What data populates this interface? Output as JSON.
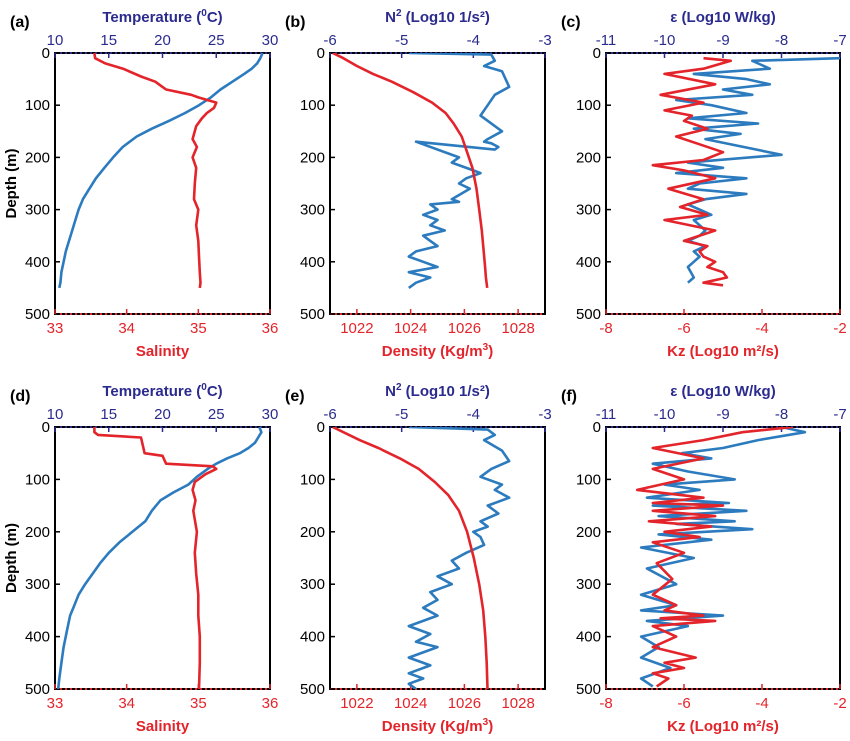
{
  "colors": {
    "top_axis": "#2b2b8f",
    "bottom_axis": "#e3242b",
    "blue_line": "#2c7bbf",
    "red_line": "#e3242b"
  },
  "depth_axis": {
    "label": "Depth (m)",
    "ticks": [
      "0",
      "100",
      "200",
      "300",
      "400",
      "500"
    ],
    "ylim": [
      0,
      500
    ]
  },
  "chart_data": [
    {
      "panel": "(a)",
      "type": "line",
      "top_axis": {
        "label": "Temperature (°C)",
        "label_main": "Temperature (",
        "label_sup": "0",
        "label_tail": "C)",
        "ticks": [
          "10",
          "15",
          "20",
          "25",
          "30"
        ],
        "xlim": [
          10,
          30
        ]
      },
      "bottom_axis": {
        "label": "Salinity",
        "label_main": "Salinity",
        "label_sup": "",
        "label_tail": "",
        "ticks": [
          "33",
          "34",
          "35",
          "36"
        ],
        "xlim": [
          33,
          36
        ]
      },
      "series": [
        {
          "axis": "top",
          "color": "blue",
          "x": [
            29.3,
            29.1,
            28.8,
            28.3,
            27.6,
            26.5,
            25.4,
            24.5,
            23.4,
            22.1,
            20.6,
            19.0,
            17.6,
            16.3,
            15.4,
            14.6,
            13.8,
            13.2,
            12.6,
            12.2,
            11.9,
            11.6,
            11.3,
            11.0,
            10.8,
            10.6,
            10.5,
            10.4
          ],
          "y": [
            0,
            10,
            20,
            30,
            40,
            55,
            70,
            85,
            100,
            115,
            130,
            145,
            160,
            180,
            200,
            220,
            240,
            260,
            280,
            300,
            320,
            340,
            360,
            380,
            400,
            420,
            440,
            450
          ]
        },
        {
          "axis": "bottom",
          "color": "red",
          "x": [
            33.55,
            33.56,
            33.7,
            33.95,
            34.2,
            34.4,
            34.5,
            34.55,
            34.9,
            35.0,
            35.25,
            35.22,
            35.12,
            35.05,
            34.97,
            34.92,
            34.98,
            34.92,
            34.97,
            34.95,
            34.94,
            35.0,
            34.97,
            35.0,
            35.01,
            35.02,
            35.03,
            35.02
          ],
          "y": [
            0,
            10,
            20,
            30,
            45,
            55,
            65,
            70,
            80,
            85,
            95,
            105,
            115,
            125,
            140,
            165,
            180,
            200,
            220,
            250,
            280,
            300,
            330,
            360,
            390,
            420,
            440,
            450
          ]
        }
      ]
    },
    {
      "panel": "(b)",
      "type": "line",
      "top_axis": {
        "label": "N² (Log10 1/s²)",
        "label_main": "N",
        "label_sup": "2",
        "label_tail": " (Log10 1/s²)",
        "ticks": [
          "-6",
          "-5",
          "-4",
          "-3"
        ],
        "xlim": [
          -6,
          -3
        ]
      },
      "bottom_axis": {
        "label": "Density (Kg/m³)",
        "label_main": "Density (Kg/m",
        "label_sup": "3",
        "label_tail": ")",
        "ticks": [
          "1022",
          "1024",
          "1026",
          "1028"
        ],
        "xlim": [
          1021,
          1029
        ]
      },
      "series": [
        {
          "axis": "top",
          "color": "blue",
          "x": [
            -4.9,
            -3.75,
            -3.7,
            -3.85,
            -3.6,
            -3.5,
            -3.7,
            -3.8,
            -3.9,
            -3.7,
            -3.6,
            -3.8,
            -3.85,
            -3.75,
            -3.65,
            -3.7,
            -4.8,
            -4.2,
            -4.3,
            -4.0,
            -3.9,
            -4.1,
            -4.2,
            -4.05,
            -4.3,
            -4.2,
            -4.6,
            -4.5,
            -4.7,
            -4.5,
            -4.6,
            -4.4,
            -4.7,
            -4.6,
            -4.5,
            -4.8,
            -4.9,
            -4.7,
            -4.5,
            -4.9,
            -4.6,
            -4.8,
            -4.9
          ],
          "y": [
            0,
            3,
            15,
            25,
            35,
            65,
            80,
            100,
            120,
            140,
            150,
            165,
            170,
            173,
            180,
            185,
            170,
            200,
            210,
            225,
            230,
            240,
            250,
            260,
            280,
            285,
            290,
            300,
            310,
            320,
            330,
            340,
            350,
            360,
            370,
            380,
            390,
            400,
            410,
            420,
            430,
            440,
            450
          ]
        },
        {
          "axis": "bottom",
          "color": "red",
          "x": [
            1021.1,
            1021.5,
            1022.0,
            1022.6,
            1023.3,
            1024.1,
            1024.8,
            1025.3,
            1025.6,
            1025.9,
            1026.1,
            1026.3,
            1026.45,
            1026.55,
            1026.65,
            1026.72,
            1026.77,
            1026.8,
            1026.85
          ],
          "y": [
            0,
            10,
            25,
            40,
            55,
            75,
            95,
            115,
            135,
            160,
            190,
            220,
            260,
            300,
            340,
            380,
            410,
            430,
            450
          ]
        }
      ]
    },
    {
      "panel": "(c)",
      "type": "line",
      "top_axis": {
        "label": "ε (Log10 W/kg)",
        "label_main": "ε (Log10 W/kg)",
        "label_sup": "",
        "label_tail": "",
        "ticks": [
          "-11",
          "-10",
          "-9",
          "-8",
          "-7"
        ],
        "xlim": [
          -11,
          -7
        ]
      },
      "bottom_axis": {
        "label": "Kz (Log10 m²/s)",
        "label_main": "Kz (Log10 m²/s)",
        "label_sup": "",
        "label_tail": "",
        "ticks": [
          "-8",
          "-6",
          "-4",
          "-2"
        ],
        "xlim": [
          -8,
          -2
        ]
      },
      "series": [
        {
          "axis": "top",
          "color": "blue",
          "x": [
            -7.0,
            -8.5,
            -8.2,
            -9.5,
            -8.6,
            -8.2,
            -9.0,
            -8.5,
            -9.8,
            -9.2,
            -8.6,
            -9.6,
            -8.4,
            -9.5,
            -8.7,
            -9.3,
            -8.0,
            -9.6,
            -9.0,
            -9.8,
            -8.6,
            -9.4,
            -9.6,
            -8.6,
            -9.3,
            -9.6,
            -9.4,
            -9.2,
            -9.5,
            -9.3,
            -9.4,
            -9.6,
            -9.3,
            -9.5,
            -9.4,
            -9.5,
            -9.6,
            -9.5,
            -9.6
          ],
          "y": [
            10,
            15,
            30,
            40,
            50,
            60,
            70,
            80,
            90,
            100,
            115,
            125,
            135,
            145,
            155,
            165,
            195,
            210,
            220,
            230,
            240,
            250,
            260,
            270,
            280,
            290,
            300,
            310,
            320,
            340,
            350,
            360,
            370,
            380,
            390,
            400,
            410,
            430,
            440
          ]
        },
        {
          "axis": "bottom",
          "color": "red",
          "x": [
            -5.5,
            -4.8,
            -5.5,
            -6.5,
            -5.2,
            -6.6,
            -5.5,
            -6.5,
            -5.8,
            -6.0,
            -5.4,
            -6.2,
            -5.6,
            -5.0,
            -5.5,
            -6.8,
            -6.0,
            -5.2,
            -6.4,
            -5.5,
            -6.1,
            -5.4,
            -6.5,
            -5.2,
            -6.0,
            -5.4,
            -5.6,
            -5.5,
            -5.2,
            -5.4,
            -5.0,
            -4.9,
            -5.5,
            -5.0
          ],
          "y": [
            10,
            15,
            30,
            40,
            60,
            80,
            95,
            110,
            120,
            130,
            145,
            160,
            175,
            190,
            205,
            215,
            225,
            240,
            260,
            280,
            295,
            310,
            320,
            340,
            360,
            370,
            380,
            390,
            400,
            410,
            420,
            430,
            440,
            445
          ]
        }
      ]
    },
    {
      "panel": "(d)",
      "type": "line",
      "top_axis": {
        "label": "Temperature (°C)",
        "label_main": "Temperature (",
        "label_sup": "0",
        "label_tail": "C)",
        "ticks": [
          "10",
          "15",
          "20",
          "25",
          "30"
        ],
        "xlim": [
          10,
          30
        ]
      },
      "bottom_axis": {
        "label": "Salinity",
        "label_main": "Salinity",
        "label_sup": "",
        "label_tail": "",
        "ticks": [
          "33",
          "34",
          "35",
          "36"
        ],
        "xlim": [
          33,
          36
        ]
      },
      "series": [
        {
          "axis": "top",
          "color": "blue",
          "x": [
            29.0,
            29.2,
            28.9,
            28.6,
            28.0,
            27.2,
            26.0,
            25.0,
            24.2,
            23.2,
            22.4,
            21.0,
            19.8,
            19.0,
            18.4,
            17.2,
            16.0,
            15.0,
            14.2,
            13.5,
            12.8,
            12.2,
            11.8,
            11.4,
            11.1,
            10.8,
            10.6,
            10.4,
            10.3
          ],
          "y": [
            0,
            10,
            20,
            30,
            40,
            50,
            60,
            70,
            80,
            95,
            110,
            125,
            140,
            160,
            180,
            200,
            220,
            240,
            260,
            280,
            300,
            320,
            340,
            360,
            390,
            420,
            450,
            480,
            500
          ]
        },
        {
          "axis": "bottom",
          "color": "red",
          "x": [
            33.55,
            33.55,
            33.6,
            34.2,
            34.25,
            34.5,
            34.55,
            35.2,
            35.25,
            35.1,
            34.95,
            34.92,
            34.96,
            34.93,
            34.98,
            34.95,
            34.97,
            35.0,
            35.0,
            35.02,
            35.02,
            35.01
          ],
          "y": [
            0,
            10,
            15,
            20,
            50,
            55,
            70,
            75,
            80,
            90,
            105,
            120,
            140,
            160,
            200,
            240,
            280,
            320,
            360,
            400,
            450,
            500
          ]
        }
      ]
    },
    {
      "panel": "(e)",
      "type": "line",
      "top_axis": {
        "label": "N² (Log10 1/s²)",
        "label_main": "N",
        "label_sup": "2",
        "label_tail": " (Log10 1/s²)",
        "ticks": [
          "-6",
          "-5",
          "-4",
          "-3"
        ],
        "xlim": [
          -6,
          -3
        ]
      },
      "bottom_axis": {
        "label": "Density (Kg/m³)",
        "label_main": "Density (Kg/m",
        "label_sup": "3",
        "label_tail": ")",
        "ticks": [
          "1022",
          "1024",
          "1026",
          "1028"
        ],
        "xlim": [
          1021,
          1029
        ]
      },
      "series": [
        {
          "axis": "top",
          "color": "blue",
          "x": [
            -4.9,
            -3.8,
            -3.7,
            -3.85,
            -3.6,
            -3.5,
            -3.75,
            -3.9,
            -3.6,
            -3.7,
            -3.5,
            -3.8,
            -3.65,
            -3.9,
            -3.8,
            -4.0,
            -3.9,
            -3.85,
            -4.1,
            -4.3,
            -4.2,
            -4.5,
            -4.3,
            -4.6,
            -4.5,
            -4.7,
            -4.5,
            -4.9,
            -4.6,
            -4.8,
            -4.5,
            -4.9,
            -4.6,
            -4.9,
            -4.7,
            -4.9,
            -4.8
          ],
          "y": [
            0,
            5,
            15,
            25,
            45,
            65,
            80,
            95,
            110,
            120,
            135,
            150,
            165,
            180,
            190,
            200,
            210,
            225,
            240,
            255,
            270,
            285,
            300,
            315,
            330,
            345,
            360,
            380,
            395,
            410,
            420,
            440,
            455,
            470,
            480,
            490,
            500
          ]
        },
        {
          "axis": "bottom",
          "color": "red",
          "x": [
            1021.1,
            1021.5,
            1022.1,
            1022.8,
            1023.6,
            1024.3,
            1024.9,
            1025.4,
            1025.8,
            1026.1,
            1026.35,
            1026.55,
            1026.7,
            1026.78,
            1026.83,
            1026.86
          ],
          "y": [
            0,
            10,
            25,
            40,
            60,
            80,
            105,
            130,
            160,
            200,
            250,
            300,
            350,
            400,
            450,
            500
          ]
        }
      ]
    },
    {
      "panel": "(f)",
      "type": "line",
      "top_axis": {
        "label": "ε (Log10 W/kg)",
        "label_main": "ε (Log10 W/kg)",
        "label_sup": "",
        "label_tail": "",
        "ticks": [
          "-11",
          "-10",
          "-9",
          "-8",
          "-7"
        ],
        "xlim": [
          -11,
          -7
        ]
      },
      "bottom_axis": {
        "label": "Kz (Log10 m²/s)",
        "label_main": "Kz (Log10 m²/s)",
        "label_sup": "",
        "label_tail": "",
        "ticks": [
          "-8",
          "-6",
          "-4",
          "-2"
        ],
        "xlim": [
          -8,
          -2
        ]
      },
      "series": [
        {
          "axis": "top",
          "color": "blue",
          "x": [
            -8.0,
            -7.6,
            -8.4,
            -9.0,
            -9.7,
            -9.2,
            -10.2,
            -9.6,
            -8.8,
            -10.0,
            -9.4,
            -10.3,
            -8.9,
            -10.2,
            -8.6,
            -10.1,
            -8.8,
            -9.8,
            -8.5,
            -10.1,
            -9.2,
            -10.4,
            -9.5,
            -10.3,
            -9.8,
            -10.4,
            -9.8,
            -10.4,
            -9.7,
            -9.0,
            -10.3,
            -9.6,
            -10.4,
            -10.1,
            -10.4,
            -9.9,
            -10.4,
            -10.2
          ],
          "y": [
            0,
            10,
            25,
            40,
            50,
            60,
            70,
            85,
            100,
            110,
            120,
            135,
            145,
            150,
            160,
            170,
            180,
            185,
            195,
            205,
            215,
            230,
            250,
            270,
            300,
            320,
            340,
            350,
            355,
            360,
            370,
            380,
            400,
            420,
            440,
            460,
            480,
            495
          ]
        },
        {
          "axis": "bottom",
          "color": "red",
          "x": [
            -3.2,
            -4.5,
            -5.5,
            -6.8,
            -5.5,
            -6.8,
            -6.0,
            -7.2,
            -5.5,
            -6.8,
            -5.0,
            -6.8,
            -5.2,
            -6.9,
            -5.3,
            -6.5,
            -5.6,
            -6.8,
            -6.0,
            -6.7,
            -6.3,
            -6.8,
            -6.2,
            -6.5,
            -5.5,
            -6.6,
            -5.2,
            -6.8,
            -6.2,
            -6.8,
            -5.7,
            -6.5,
            -6.0,
            -6.8,
            -6.4,
            -6.7
          ],
          "y": [
            0,
            10,
            25,
            40,
            60,
            80,
            100,
            120,
            135,
            145,
            150,
            160,
            170,
            180,
            190,
            200,
            210,
            220,
            240,
            260,
            290,
            320,
            340,
            350,
            360,
            365,
            370,
            380,
            400,
            420,
            440,
            450,
            460,
            470,
            480,
            495
          ]
        }
      ]
    }
  ]
}
